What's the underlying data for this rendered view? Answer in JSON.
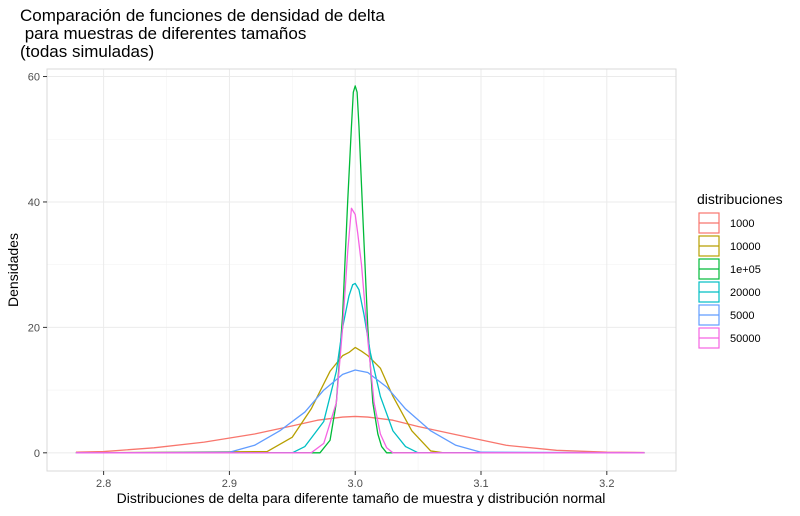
{
  "chart_data": {
    "type": "line",
    "title_lines": [
      "Comparación de funciones de densidad de delta",
      " para muestras de diferentes tamaños",
      "(todas simuladas)"
    ],
    "xlabel": "Distribuciones de delta para diferente tamaño de muestra y distribución normal",
    "ylabel": "Densidades",
    "xlim": [
      2.755,
      2.255
    ],
    "ylim": [
      -2.9,
      61.2
    ],
    "xticks": [
      "2.8",
      "2.9",
      "3.0",
      "3.1",
      "3.2"
    ],
    "yticks": [
      "0",
      "20",
      "40",
      "60"
    ],
    "grid": true,
    "legend_title": "distribuciones",
    "legend_position": "right",
    "series": [
      {
        "name": "1000",
        "color": "#F8766D",
        "x": [
          2.778,
          2.8,
          2.84,
          2.88,
          2.92,
          2.95,
          2.97,
          2.99,
          3.0,
          3.01,
          3.03,
          3.05,
          3.08,
          3.12,
          3.16,
          3.2,
          3.23
        ],
        "y": [
          0.1,
          0.2,
          0.8,
          1.7,
          3.0,
          4.3,
          5.2,
          5.7,
          5.8,
          5.7,
          5.2,
          4.2,
          2.9,
          1.2,
          0.4,
          0.1,
          0.05
        ]
      },
      {
        "name": "10000",
        "color": "#B79F00",
        "x": [
          2.778,
          2.93,
          2.95,
          2.965,
          2.98,
          2.99,
          2.995,
          3.0,
          3.005,
          3.01,
          3.02,
          3.03,
          3.045,
          3.06,
          3.07,
          3.23
        ],
        "y": [
          0,
          0.2,
          2.5,
          7.0,
          13.0,
          15.5,
          16.0,
          16.8,
          16.2,
          15.5,
          13.5,
          9.0,
          3.5,
          0.3,
          0,
          0
        ]
      },
      {
        "name": "1e+05",
        "color": "#00BA38",
        "x": [
          2.778,
          2.972,
          2.98,
          2.985,
          2.99,
          2.994,
          2.997,
          2.9985,
          3.0,
          3.0015,
          3.003,
          3.006,
          3.01,
          3.014,
          3.018,
          3.021,
          3.025,
          3.23
        ],
        "y": [
          0,
          0,
          2.0,
          8.0,
          22.0,
          40.0,
          52.0,
          57.5,
          58.5,
          57.5,
          52.0,
          38.0,
          20.0,
          8.0,
          3.0,
          1.0,
          0,
          0
        ]
      },
      {
        "name": "20000",
        "color": "#00BFC4",
        "x": [
          2.778,
          2.95,
          2.96,
          2.975,
          2.985,
          2.99,
          2.995,
          2.998,
          3.0,
          3.003,
          3.007,
          3.012,
          3.02,
          3.03,
          3.04,
          3.05,
          3.23
        ],
        "y": [
          0,
          0,
          1.0,
          5.0,
          13.0,
          20.0,
          25.0,
          26.8,
          27.0,
          26.0,
          22.0,
          16.0,
          9.0,
          3.5,
          1.0,
          0,
          0
        ]
      },
      {
        "name": "5000",
        "color": "#619CFF",
        "x": [
          2.778,
          2.9,
          2.92,
          2.94,
          2.96,
          2.975,
          2.99,
          3.0,
          3.01,
          3.025,
          3.04,
          3.06,
          3.08,
          3.1,
          3.23
        ],
        "y": [
          0,
          0.1,
          1.2,
          3.5,
          6.5,
          10.0,
          12.5,
          13.2,
          12.8,
          10.5,
          7.0,
          3.5,
          1.2,
          0.1,
          0
        ]
      },
      {
        "name": "50000",
        "color": "#F564E3",
        "x": [
          2.778,
          2.965,
          2.975,
          2.985,
          2.99,
          2.994,
          2.997,
          3.0,
          3.002,
          3.005,
          3.01,
          3.015,
          3.02,
          3.025,
          3.03,
          3.23
        ],
        "y": [
          0,
          0,
          1.5,
          8.0,
          20.0,
          32.0,
          39.0,
          38.0,
          35.0,
          30.0,
          18.0,
          8.0,
          3.0,
          0.8,
          0,
          0
        ]
      }
    ]
  }
}
